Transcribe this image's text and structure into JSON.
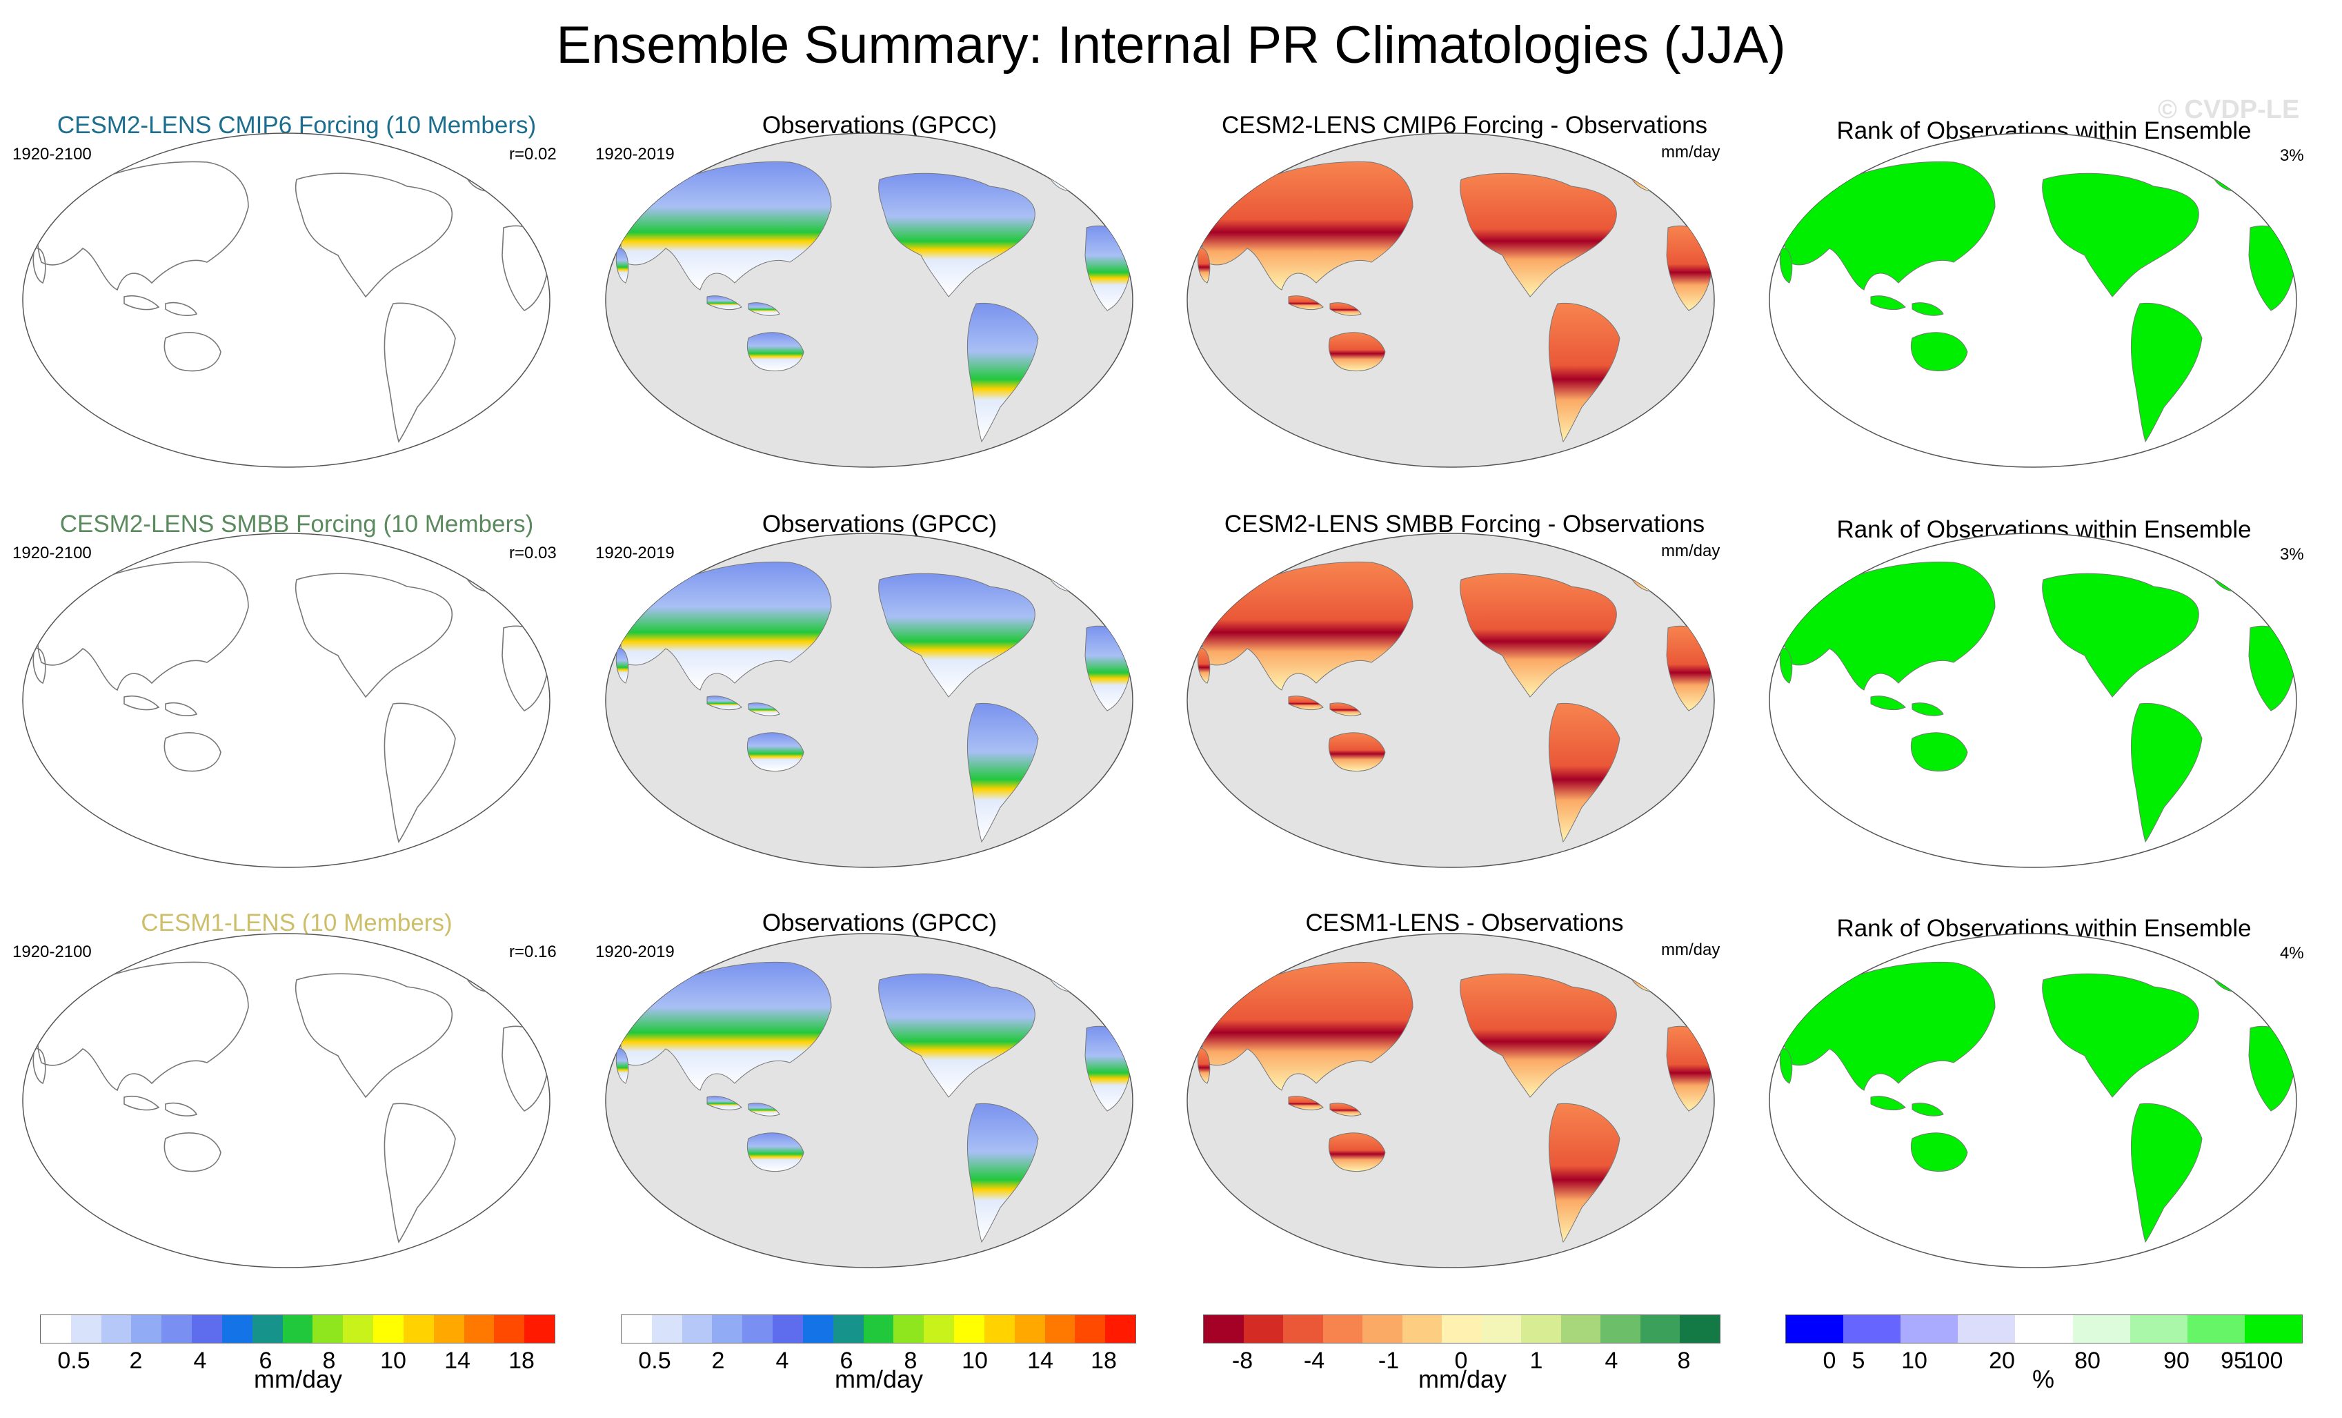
{
  "title": "Ensemble Summary: Internal PR Climatologies (JJA)",
  "watermark": "© CVDP-LE",
  "rows": [
    {
      "model": {
        "title": "CESM2-LENS CMIP6 Forcing (10 Members)",
        "title_color": "#1c6e8e",
        "years": "1920-2100",
        "r": "r=0.02"
      },
      "obs": {
        "title": "Observations (GPCC)",
        "years": "1920-2019"
      },
      "diff": {
        "title": "CESM2-LENS CMIP6 Forcing - Observations",
        "unit": "mm/day"
      },
      "rank": {
        "title": "Rank of Observations within Ensemble",
        "pct": "3%"
      }
    },
    {
      "model": {
        "title": "CESM2-LENS SMBB Forcing (10 Members)",
        "title_color": "#5a8a5e",
        "years": "1920-2100",
        "r": "r=0.03"
      },
      "obs": {
        "title": "Observations (GPCC)",
        "years": "1920-2019"
      },
      "diff": {
        "title": "CESM2-LENS SMBB Forcing - Observations",
        "unit": "mm/day"
      },
      "rank": {
        "title": "Rank of Observations within Ensemble",
        "pct": "3%"
      }
    },
    {
      "model": {
        "title": "CESM1-LENS (10 Members)",
        "title_color": "#cdbf6a",
        "years": "1920-2100",
        "r": "r=0.16"
      },
      "obs": {
        "title": "Observations (GPCC)",
        "years": "1920-2019"
      },
      "diff": {
        "title": "CESM1-LENS - Observations",
        "unit": "mm/day"
      },
      "rank": {
        "title": "Rank of Observations within Ensemble",
        "pct": "4%"
      }
    }
  ],
  "chart_data": [
    {
      "type": "heatmap",
      "name": "precipitation-climatology-colorbar",
      "unit": "mm/day",
      "tick_labels": [
        "0.5",
        "2",
        "4",
        "6",
        "8",
        "10",
        "14",
        "18"
      ],
      "colors": [
        "#ffffff",
        "#d9e2fb",
        "#b6c8f8",
        "#92abf5",
        "#7a8ff2",
        "#5e6ded",
        "#1473e6",
        "#16938b",
        "#22c83c",
        "#8fe61e",
        "#c9f21a",
        "#ffff00",
        "#ffd200",
        "#ffa800",
        "#ff7800",
        "#ff4a00",
        "#ff1a00"
      ]
    },
    {
      "type": "heatmap",
      "name": "difference-colorbar",
      "unit": "mm/day",
      "tick_labels": [
        "-8",
        "-4",
        "-1",
        "0",
        "1",
        "4",
        "8"
      ],
      "colors": [
        "#a50026",
        "#d42b24",
        "#ea5838",
        "#f7844f",
        "#fbaa66",
        "#fdce82",
        "#fff2b0",
        "#f4f6b8",
        "#d8ec94",
        "#a7d77a",
        "#6dbe68",
        "#3aa05a",
        "#137a45"
      ]
    },
    {
      "type": "heatmap",
      "name": "rank-colorbar",
      "unit": "%",
      "tick_labels": [
        "0",
        "5",
        "10",
        "20",
        "80",
        "90",
        "95",
        "100"
      ],
      "colors": [
        "#0000ff",
        "#6666ff",
        "#aaaaff",
        "#dcdcfb",
        "#ffffff",
        "#dcfcdc",
        "#aaf7aa",
        "#66f566",
        "#00f000"
      ]
    }
  ]
}
